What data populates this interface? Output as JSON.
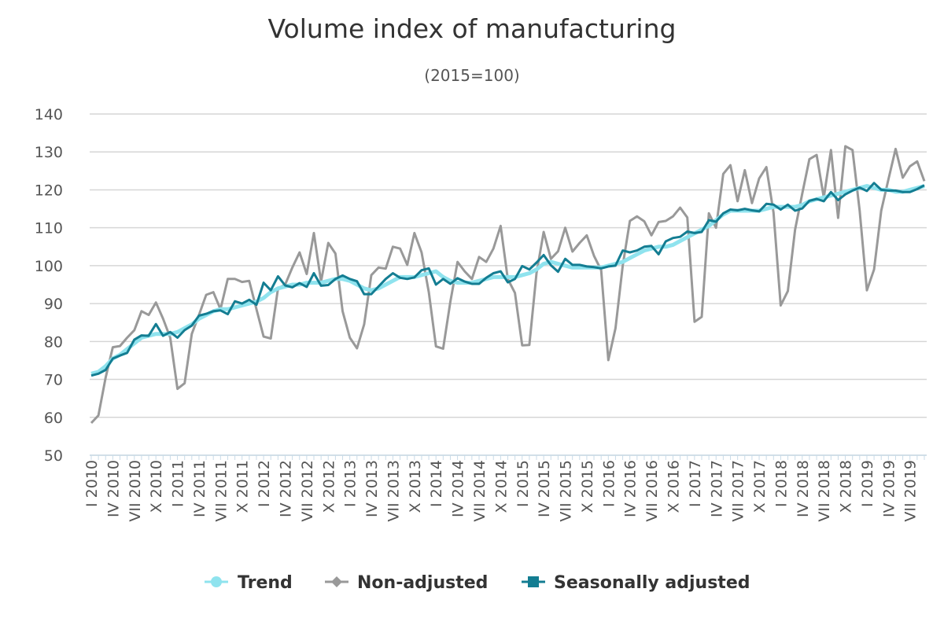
{
  "chart_data": {
    "type": "line",
    "title": "Volume index of manufacturing",
    "subtitle": "(2015=100)",
    "ylim": [
      50,
      140
    ],
    "yticks": [
      "140",
      "130",
      "120",
      "110",
      "100",
      "90",
      "80",
      "70",
      "60",
      "50"
    ],
    "xticks": [
      "I 2010",
      "IV 2010",
      "VII 2010",
      "X 2010",
      "I 2011",
      "IV 2011",
      "VII 2011",
      "X 2011",
      "I 2012",
      "IV 2012",
      "VII 2012",
      "X 2012",
      "I 2013",
      "IV 2013",
      "VII 2013",
      "X 2013",
      "I 2014",
      "IV 2014",
      "VII 2014",
      "X 2014",
      "I 2015",
      "IV 2015",
      "VII 2015",
      "X 2015",
      "I 2016",
      "IV 2016",
      "VII 2016",
      "X 2016",
      "I 2017",
      "IV 2017",
      "VII 2017",
      "X 2017",
      "I 2018",
      "IV 2018",
      "VII 2018",
      "X 2018",
      "I 2019",
      "IV 2019",
      "VII 2019"
    ],
    "x_start": "2010-01",
    "x_end": "2019-09",
    "grid": true,
    "legend_position": "bottom",
    "series": [
      {
        "name": "Trend",
        "color": "#8fe3ee",
        "marker": "circle",
        "values": [
          71.5,
          72,
          73.5,
          75.5,
          76.5,
          78,
          79.5,
          81,
          81.5,
          82,
          82,
          82,
          82.5,
          83.5,
          84.5,
          86,
          87,
          88,
          88.5,
          88.5,
          89,
          89.5,
          90,
          90.5,
          91.5,
          93,
          94,
          94.5,
          95,
          95,
          95.5,
          95.5,
          95.5,
          96,
          96.5,
          96.5,
          96,
          95,
          94,
          93.5,
          94,
          95,
          96,
          97,
          97,
          97,
          97.5,
          98,
          98.5,
          97,
          96,
          95.5,
          95.5,
          95.5,
          96,
          96.5,
          97,
          97,
          97,
          97,
          97.5,
          98,
          99,
          100.5,
          101,
          100.5,
          100,
          99.5,
          99.5,
          99.5,
          99.5,
          99.5,
          100,
          100.5,
          101,
          102,
          103,
          104,
          104.5,
          105,
          105,
          105.5,
          106.5,
          107.5,
          108.5,
          109.5,
          110.5,
          112,
          113.5,
          114.5,
          114.5,
          114.5,
          114.5,
          114.5,
          115,
          115.5,
          115.5,
          115.5,
          115.5,
          116,
          117,
          117.5,
          118,
          118.5,
          119,
          119.5,
          120,
          120.5,
          121,
          120.5,
          120,
          120,
          119.5,
          119.5,
          120,
          120.5,
          121
        ]
      },
      {
        "name": "Non-adjusted",
        "color": "#999999",
        "marker": "diamond",
        "values": [
          58.5,
          60.5,
          70.5,
          78.5,
          78.8,
          81,
          83,
          88,
          87,
          90.3,
          86,
          81,
          67.5,
          69,
          82,
          87,
          92.3,
          93,
          88.5,
          96.5,
          96.5,
          95.7,
          96,
          88.5,
          81.3,
          80.8,
          94,
          95,
          99.5,
          103.5,
          97.8,
          108.6,
          95.8,
          106,
          103.2,
          88,
          81,
          78.2,
          84.5,
          97.5,
          99.5,
          99.2,
          105,
          104.5,
          100.2,
          108.6,
          103.5,
          93,
          78.7,
          78.1,
          90.5,
          101,
          98.5,
          96.5,
          102.3,
          101,
          104.5,
          110.5,
          96.5,
          92.8,
          79,
          79.1,
          98,
          108.9,
          101.8,
          103.8,
          110,
          103.7,
          106,
          108,
          102.6,
          98.8,
          75.1,
          83.5,
          100,
          111.8,
          113,
          111.7,
          108,
          111.5,
          111.8,
          113,
          115.3,
          112.7,
          85.2,
          86.5,
          113.8,
          110,
          124.2,
          126.5,
          117,
          125.2,
          116.5,
          123,
          126,
          114,
          89.5,
          93.3,
          109.5,
          119,
          128.1,
          129.2,
          118,
          130.5,
          112.6,
          131.5,
          130.5,
          114.5,
          93.5,
          99,
          114.5,
          122.8,
          130.8,
          123.2,
          126.2,
          127.5,
          122.3
        ]
      },
      {
        "name": "Seasonally adjusted",
        "color": "#137d92",
        "marker": "square",
        "values": [
          71,
          71.5,
          72.5,
          75.5,
          76.3,
          77,
          80.5,
          81.6,
          81.5,
          84.6,
          81.5,
          82.5,
          81,
          83,
          84.2,
          86.8,
          87.3,
          88,
          88.2,
          87.2,
          90.6,
          90,
          91,
          89.7,
          95.5,
          93.5,
          97.2,
          94.8,
          94.3,
          95.4,
          94.4,
          98,
          94.7,
          94.9,
          96.5,
          97.4,
          96.5,
          95.9,
          92.5,
          92.5,
          94.5,
          96.5,
          98,
          96.8,
          96.5,
          96.9,
          98.8,
          99.3,
          95,
          96.5,
          95.2,
          96.7,
          95.8,
          95.2,
          95.2,
          96.8,
          98,
          98.5,
          95.6,
          96.5,
          99.9,
          99,
          100.8,
          102.8,
          100.1,
          98.4,
          101.8,
          100.2,
          100.2,
          99.8,
          99.6,
          99.3,
          99.8,
          100,
          104,
          103.5,
          104,
          105,
          105.2,
          103,
          106.4,
          107.3,
          107.6,
          109,
          108.6,
          108.9,
          112,
          111.6,
          113.8,
          114.8,
          114.6,
          115,
          114.6,
          114.3,
          116.3,
          116.1,
          114.8,
          116.1,
          114.5,
          115.1,
          117.1,
          117.6,
          117,
          119.4,
          117.3,
          118.8,
          119.8,
          120.6,
          119.7,
          121.8,
          120,
          119.8,
          119.8,
          119.4,
          119.4,
          120.2,
          121.2
        ]
      }
    ]
  }
}
